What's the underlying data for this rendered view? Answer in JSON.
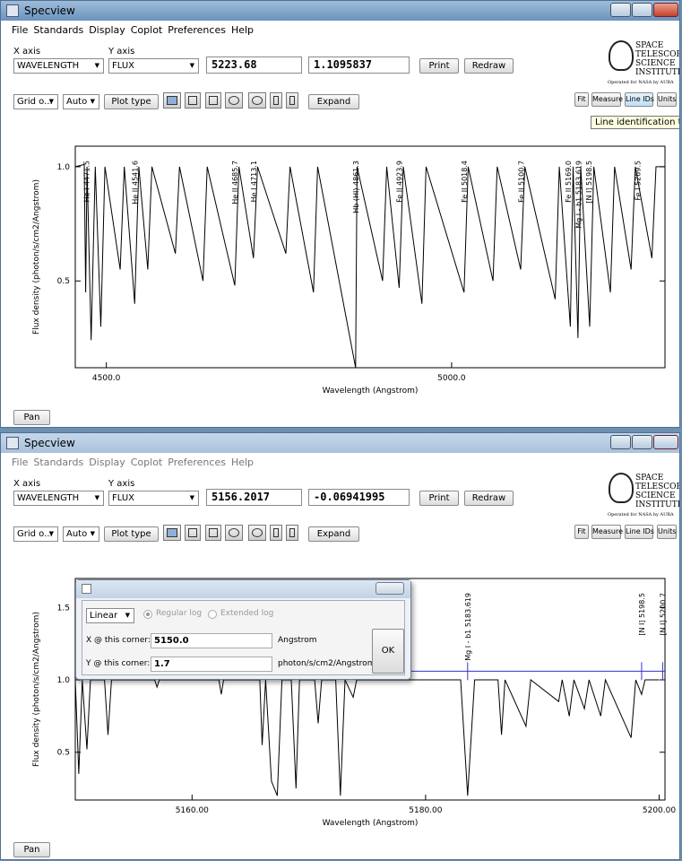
{
  "windows": [
    {
      "title": "Specview",
      "menu": [
        "File",
        "Standards",
        "Display",
        "Coplot",
        "Preferences",
        "Help"
      ],
      "x_axis": {
        "label": "X axis",
        "value": "WAVELENGTH"
      },
      "y_axis": {
        "label": "Y axis",
        "value": "FLUX"
      },
      "readout": [
        "5223.68",
        "1.1095837"
      ],
      "buttons": [
        "Print",
        "Redraw"
      ],
      "logo": [
        "SPACE",
        "TELESCOPE",
        "SCIENCE",
        "INSTITUTE",
        "Operated for NASA by AURA"
      ],
      "toolbar": {
        "left": [
          "Grid o...",
          "Auto"
        ],
        "plot_type": "Plot type",
        "expand": "Expand",
        "right": [
          "Fit",
          "Measure",
          "Line IDs",
          "Units"
        ]
      },
      "tooltip": "Line identification too",
      "chart": {
        "type": "line",
        "xlabel": "Wavelength (Angstrom)",
        "ylabel": "Flux density (photon/s/cm2/Angstrom)",
        "xlim": [
          4455,
          5309
        ],
        "ylim": [
          0.12,
          1.09
        ],
        "xticks": [
          {
            "value": 4500,
            "label": "4500.0"
          },
          {
            "value": 5000,
            "label": "5000.0"
          }
        ],
        "yticks": [
          0.5,
          {
            "value": 1,
            "label": "1.0"
          }
        ],
        "color": "#000000",
        "x": [
          4455,
          4468,
          4470,
          4472,
          4478,
          4484,
          4492,
          4498,
          4520,
          4526,
          4541,
          4547,
          4560,
          4566,
          4600,
          4606,
          4640,
          4646,
          4686,
          4692,
          4713,
          4719,
          4760,
          4766,
          4800,
          4806,
          4861,
          4863,
          4900,
          4906,
          4924,
          4930,
          4957,
          4963,
          5018,
          5024,
          5060,
          5066,
          5100,
          5106,
          5150,
          5156,
          5172,
          5176,
          5183,
          5187,
          5200,
          5206,
          5230,
          5236,
          5260,
          5266,
          5290,
          5296,
          5309
        ],
        "y": [
          1.0,
          1.01,
          0.45,
          1.0,
          0.24,
          1.0,
          0.3,
          1.0,
          0.55,
          1.0,
          0.4,
          1.0,
          0.55,
          1.0,
          0.62,
          1.0,
          0.5,
          1.0,
          0.48,
          1.0,
          0.6,
          1.0,
          0.62,
          1.0,
          0.45,
          1.0,
          0.12,
          1.0,
          0.5,
          1.0,
          0.47,
          1.0,
          0.4,
          1.0,
          0.45,
          1.0,
          0.5,
          1.0,
          0.55,
          1.0,
          0.42,
          1.0,
          0.3,
          1.0,
          0.25,
          1.0,
          0.3,
          1.0,
          0.45,
          1.0,
          0.55,
          1.0,
          0.6,
          1.0,
          1.0
        ],
        "line_ids": [
          {
            "label": "He I 4471.5",
            "x": 4471.5
          },
          {
            "label": "He II 4541.6",
            "x": 4541.6
          },
          {
            "label": "He II 4685.7",
            "x": 4685.7
          },
          {
            "label": "He I 4713.1",
            "x": 4713.1
          },
          {
            "label": "Hb (HI) 4861.3",
            "x": 4861.3
          },
          {
            "label": "Fe II 4923.9",
            "x": 4923.9
          },
          {
            "label": "Fe II 5018.4",
            "x": 5018.4
          },
          {
            "label": "Fe II 5100.7",
            "x": 5100.7
          },
          {
            "label": "Fe II 5169.0",
            "x": 5169.0
          },
          {
            "label": "Mg I - b1 5183.619",
            "x": 5183.6
          },
          {
            "label": "[N I] 5198.5",
            "x": 5198.5
          },
          {
            "label": "Fe I 5269.5",
            "x": 5269.5
          }
        ]
      },
      "pan": "Pan"
    },
    {
      "title": "Specview",
      "menu": [
        "File",
        "Standards",
        "Display",
        "Coplot",
        "Preferences",
        "Help"
      ],
      "x_axis": {
        "label": "X axis",
        "value": "WAVELENGTH"
      },
      "y_axis": {
        "label": "Y axis",
        "value": "FLUX"
      },
      "readout": [
        "5156.2017",
        "-0.06941995"
      ],
      "buttons": [
        "Print",
        "Redraw"
      ],
      "logo": [
        "SPACE",
        "TELESCOPE",
        "SCIENCE",
        "INSTITUTE",
        "Operated for NASA by AURA"
      ],
      "toolbar": {
        "left": [
          "Grid o...",
          "Auto"
        ],
        "plot_type": "Plot type",
        "expand": "Expand",
        "right": [
          "Fit",
          "Measure",
          "Line IDs",
          "Units"
        ]
      },
      "chart": {
        "type": "line",
        "xlabel": "Wavelength (Angstrom)",
        "ylabel": "Flux density (photon/s/cm2/Angstrom)",
        "xlim": [
          5150,
          5200.5
        ],
        "ylim": [
          0.17,
          1.7
        ],
        "xticks": [
          {
            "value": 5160,
            "label": "5160.00"
          },
          {
            "value": 5180,
            "label": "5180.00"
          },
          {
            "value": 5200,
            "label": "5200.00"
          }
        ],
        "yticks": [
          0.5,
          {
            "value": 1,
            "label": "1.0"
          },
          1.5
        ],
        "color": "#000000",
        "reference_line": 1.06,
        "x": [
          5150,
          5150.3,
          5150.6,
          5151,
          5151.3,
          5152.5,
          5152.8,
          5153.1,
          5156.8,
          5157,
          5157.2,
          5162.3,
          5162.5,
          5162.7,
          5165.8,
          5166,
          5166.3,
          5166.8,
          5167.3,
          5167.7,
          5168.5,
          5168.9,
          5169.2,
          5170.5,
          5170.8,
          5171.1,
          5172.3,
          5172.7,
          5173.1,
          5173.8,
          5174.1,
          5183,
          5183.6,
          5184.2,
          5186.2,
          5186.5,
          5186.8,
          5188.6,
          5189,
          5191.4,
          5191.7,
          5192.3,
          5192.7,
          5193.6,
          5194,
          5195,
          5195.4,
          5197.6,
          5198,
          5198.5,
          5198.8,
          5200
        ],
        "y": [
          1.0,
          0.35,
          1.0,
          0.52,
          1.0,
          1.0,
          0.62,
          1.0,
          1.0,
          0.95,
          1.0,
          1.0,
          0.9,
          1.0,
          1.0,
          0.55,
          1.0,
          0.3,
          0.2,
          1.0,
          1.0,
          0.25,
          1.0,
          1.0,
          0.7,
          1.0,
          1.0,
          0.2,
          1.0,
          0.88,
          1.0,
          1.0,
          0.2,
          1.0,
          1.0,
          0.62,
          1.0,
          0.68,
          1.0,
          0.85,
          1.0,
          0.75,
          1.0,
          0.8,
          1.0,
          0.75,
          1.0,
          0.6,
          1.0,
          0.9,
          1.0,
          1.0
        ],
        "line_ids": [
          {
            "label": "Mg I - b1 5183.619",
            "x": 5183.6
          },
          {
            "label": "[N I] 5198.5",
            "x": 5198.5
          },
          {
            "label": "[N I] 5200.7",
            "x": 5200.3
          }
        ]
      },
      "pan": "Pan",
      "dialog": {
        "scale": "Linear",
        "options": [
          "Regular log",
          "Extended log"
        ],
        "fields": [
          {
            "label": "X @ this corner:",
            "value": "5150.0",
            "unit": "Angstrom"
          },
          {
            "label": "Y @ this corner:",
            "value": "1.7",
            "unit": "photon/s/cm2/Angstrom"
          }
        ],
        "ok": "OK"
      }
    }
  ]
}
